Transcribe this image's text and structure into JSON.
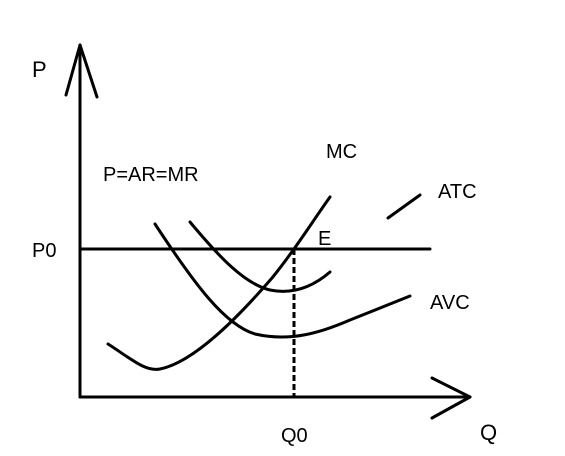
{
  "diagram": {
    "axis_labels": {
      "y": "P",
      "x": "Q"
    },
    "price_label": "P0",
    "quantity_label": "Q0",
    "demand_label": "P=AR=MR",
    "equilibrium_label": "E",
    "curves": {
      "mc": "MC",
      "atc": "ATC",
      "avc": "AVC"
    },
    "colors": {
      "stroke": "#000000",
      "background": "#ffffff"
    }
  }
}
